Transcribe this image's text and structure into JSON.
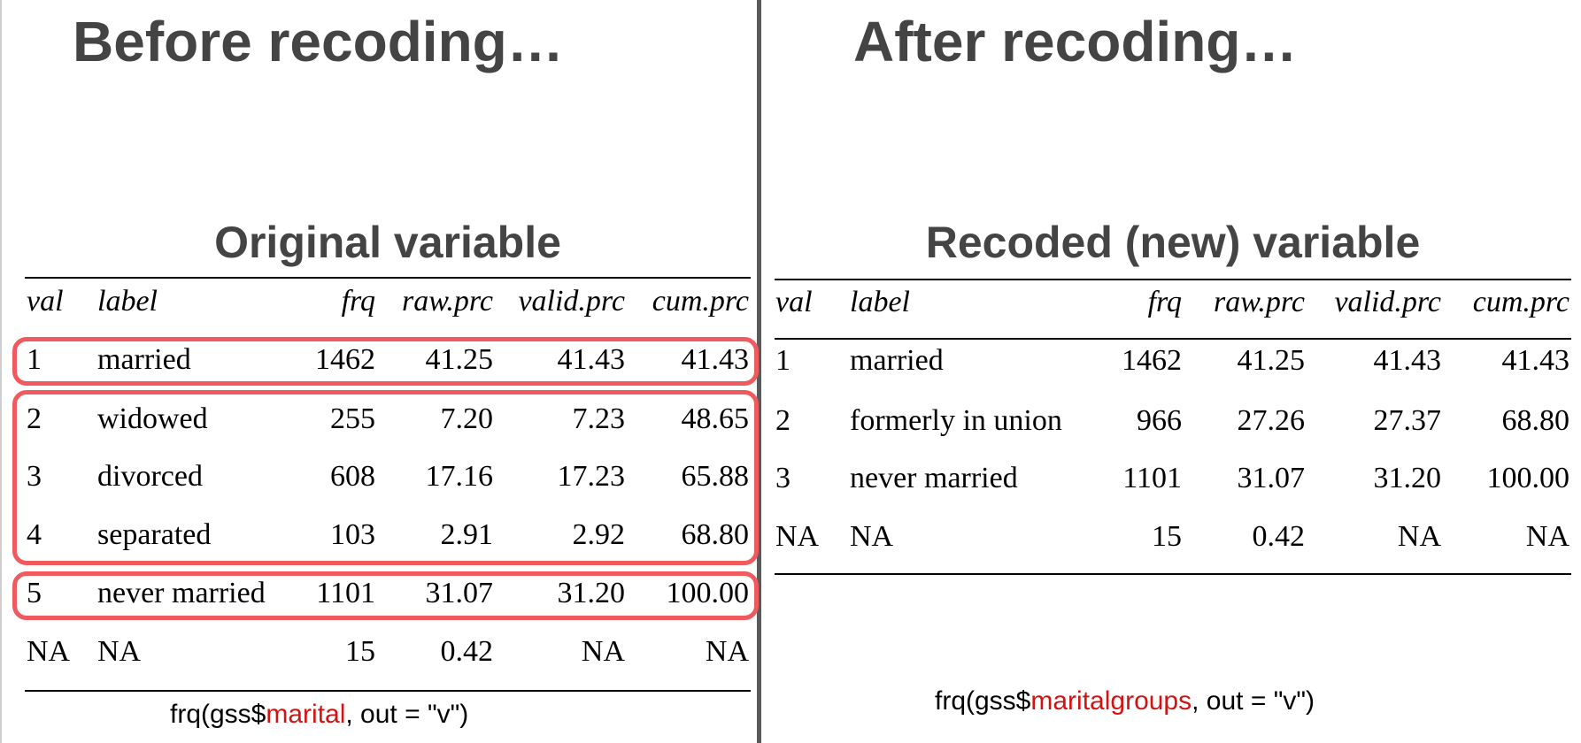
{
  "left": {
    "heading": "Before recoding…",
    "subheading": "Original variable",
    "columns": [
      "val",
      "label",
      "frq",
      "raw.prc",
      "valid.prc",
      "cum.prc"
    ],
    "rows": [
      [
        "1",
        "married",
        "1462",
        "41.25",
        "41.43",
        "41.43"
      ],
      [
        "2",
        "widowed",
        "255",
        "7.20",
        "7.23",
        "48.65"
      ],
      [
        "3",
        "divorced",
        "608",
        "17.16",
        "17.23",
        "65.88"
      ],
      [
        "4",
        "separated",
        "103",
        "2.91",
        "2.92",
        "68.80"
      ],
      [
        "5",
        "never married",
        "1101",
        "31.07",
        "31.20",
        "100.00"
      ],
      [
        "NA",
        "NA",
        "15",
        "0.42",
        "NA",
        "NA"
      ]
    ],
    "code": {
      "prefix": "frq(gss$",
      "var": "marital",
      "suffix": ", out = \"v\")"
    }
  },
  "right": {
    "heading": "After recoding…",
    "subheading": "Recoded (new) variable",
    "columns": [
      "val",
      "label",
      "frq",
      "raw.prc",
      "valid.prc",
      "cum.prc"
    ],
    "rows": [
      [
        "1",
        "married",
        "1462",
        "41.25",
        "41.43",
        "41.43"
      ],
      [
        "2",
        "formerly in union",
        "966",
        "27.26",
        "27.37",
        "68.80"
      ],
      [
        "3",
        "never married",
        "1101",
        "31.07",
        "31.20",
        "100.00"
      ],
      [
        "NA",
        "NA",
        "15",
        "0.42",
        "NA",
        "NA"
      ]
    ],
    "code": {
      "prefix": "frq(gss$",
      "var": "maritalgroups",
      "suffix": ", out = \"v\")"
    }
  },
  "colors": {
    "highlight": "#f05a5e",
    "variable": "#d01414",
    "heading": "#444444"
  }
}
